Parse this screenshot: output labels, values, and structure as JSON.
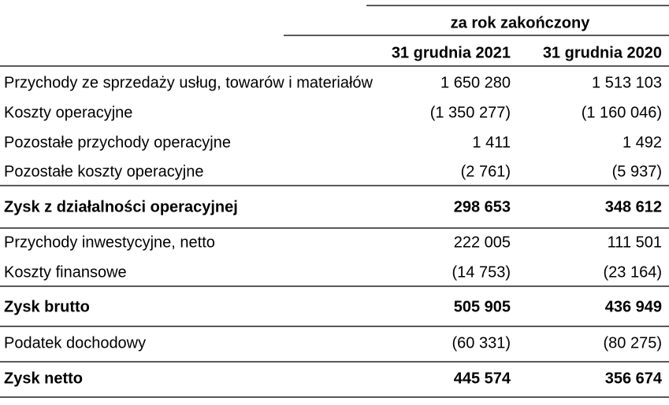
{
  "header": {
    "period": "za rok zakończony",
    "columns": [
      "31 grudnia 2021",
      "31 grudnia 2020"
    ]
  },
  "table": {
    "rows": [
      [
        "Przychody ze sprzedaży usług, towarów i materiałów",
        "1 650 280",
        "1 513 103"
      ],
      [
        "Koszty operacyjne",
        "(1 350 277)",
        "(1 160 046)"
      ],
      [
        "Pozostałe przychody operacyjne",
        "1 411",
        "1 492"
      ],
      [
        "Pozostałe koszty operacyjne",
        "(2 761)",
        "(5 937)"
      ],
      [
        "Zysk z działalności operacyjnej",
        "298 653",
        "348 612"
      ],
      [
        "Przychody inwestycyjne, netto",
        "222 005",
        "111 501"
      ],
      [
        "Koszty finansowe",
        "(14 753)",
        "(23 164)"
      ],
      [
        "Zysk brutto",
        "505 905",
        "436 949"
      ],
      [
        "Podatek dochodowy",
        "(60 331)",
        "(80 275)"
      ],
      [
        "Zysk netto",
        "445 574",
        "356 674"
      ]
    ]
  }
}
